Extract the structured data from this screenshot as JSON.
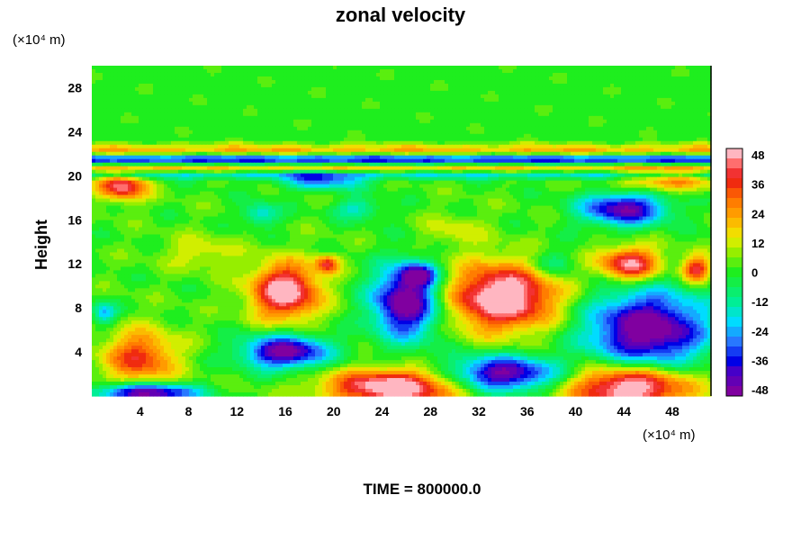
{
  "chart_data": {
    "type": "heatmap",
    "title": "zonal velocity",
    "ylabel": "Height",
    "y_unit": "(×10⁴ m)",
    "x_unit": "(×10⁴ m)",
    "footer": "TIME = 800000.0",
    "xlim": [
      0,
      51.2
    ],
    "ylim": [
      0,
      30
    ],
    "x_ticks": [
      "4",
      "8",
      "12",
      "16",
      "20",
      "24",
      "28",
      "32",
      "36",
      "40",
      "44",
      "48"
    ],
    "y_ticks": [
      "4",
      "8",
      "12",
      "16",
      "20",
      "24",
      "28"
    ],
    "colorbar": {
      "labels": [
        "48",
        "36",
        "24",
        "12",
        "0",
        "-12",
        "-24",
        "-36",
        "-48"
      ],
      "min": -48,
      "max": 48,
      "levels": 25
    },
    "background_value": 2,
    "bands": [
      {
        "y": 22.2,
        "value": 22,
        "thickness": 0.6
      },
      {
        "y": 21.5,
        "value": -44,
        "thickness": 0.5
      },
      {
        "y": 20.7,
        "value": 20,
        "thickness": 0.5
      },
      {
        "y": 20.1,
        "value": -22,
        "thickness": 0.4
      }
    ],
    "features": [
      {
        "x": 2.5,
        "y": 19.0,
        "rx": 2.0,
        "ry": 1.2,
        "value": 44
      },
      {
        "x": 47.5,
        "y": 19.5,
        "rx": 4.0,
        "ry": 1.0,
        "value": 26
      },
      {
        "x": 19.0,
        "y": 19.5,
        "rx": 3.5,
        "ry": 0.8,
        "value": -28
      },
      {
        "x": 44.0,
        "y": 17.0,
        "rx": 3.5,
        "ry": 1.5,
        "value": -48
      },
      {
        "x": 14.0,
        "y": 16.5,
        "rx": 1.5,
        "ry": 1.0,
        "value": -22
      },
      {
        "x": 22.0,
        "y": 17.0,
        "rx": 2.0,
        "ry": 1.0,
        "value": -18
      },
      {
        "x": 44.5,
        "y": 12.0,
        "rx": 2.5,
        "ry": 1.5,
        "value": 46
      },
      {
        "x": 50.0,
        "y": 11.5,
        "rx": 1.2,
        "ry": 1.2,
        "value": 40
      },
      {
        "x": 16.0,
        "y": 9.5,
        "rx": 2.8,
        "ry": 2.5,
        "value": 52
      },
      {
        "x": 19.5,
        "y": 12.0,
        "rx": 1.0,
        "ry": 0.8,
        "value": 34
      },
      {
        "x": 34.0,
        "y": 9.0,
        "rx": 4.5,
        "ry": 3.0,
        "value": 56
      },
      {
        "x": 26.0,
        "y": 8.5,
        "rx": 2.8,
        "ry": 3.2,
        "value": -56
      },
      {
        "x": 27.0,
        "y": 11.0,
        "rx": 1.5,
        "ry": 1.0,
        "value": -34
      },
      {
        "x": 46.0,
        "y": 6.0,
        "rx": 5.0,
        "ry": 3.5,
        "value": -56
      },
      {
        "x": 16.0,
        "y": 4.0,
        "rx": 3.5,
        "ry": 1.5,
        "value": -52
      },
      {
        "x": 4.0,
        "y": 3.5,
        "rx": 3.0,
        "ry": 2.5,
        "value": 34
      },
      {
        "x": 34.0,
        "y": 2.0,
        "rx": 4.5,
        "ry": 1.6,
        "value": -52
      },
      {
        "x": 25.0,
        "y": 0.8,
        "rx": 5.5,
        "ry": 1.6,
        "value": 54
      },
      {
        "x": 44.5,
        "y": 0.8,
        "rx": 5.0,
        "ry": 2.0,
        "value": 56
      },
      {
        "x": 4.5,
        "y": 0.3,
        "rx": 4.0,
        "ry": 0.8,
        "value": -56
      },
      {
        "x": 9.0,
        "y": 13.0,
        "rx": 3.0,
        "ry": 1.5,
        "value": 12
      },
      {
        "x": 30.0,
        "y": 15.0,
        "rx": 2.5,
        "ry": 1.5,
        "value": 10
      },
      {
        "x": 38.0,
        "y": 12.0,
        "rx": 2.0,
        "ry": 1.5,
        "value": -14
      },
      {
        "x": 1.0,
        "y": 7.5,
        "rx": 1.0,
        "ry": 1.0,
        "value": -26
      }
    ]
  }
}
